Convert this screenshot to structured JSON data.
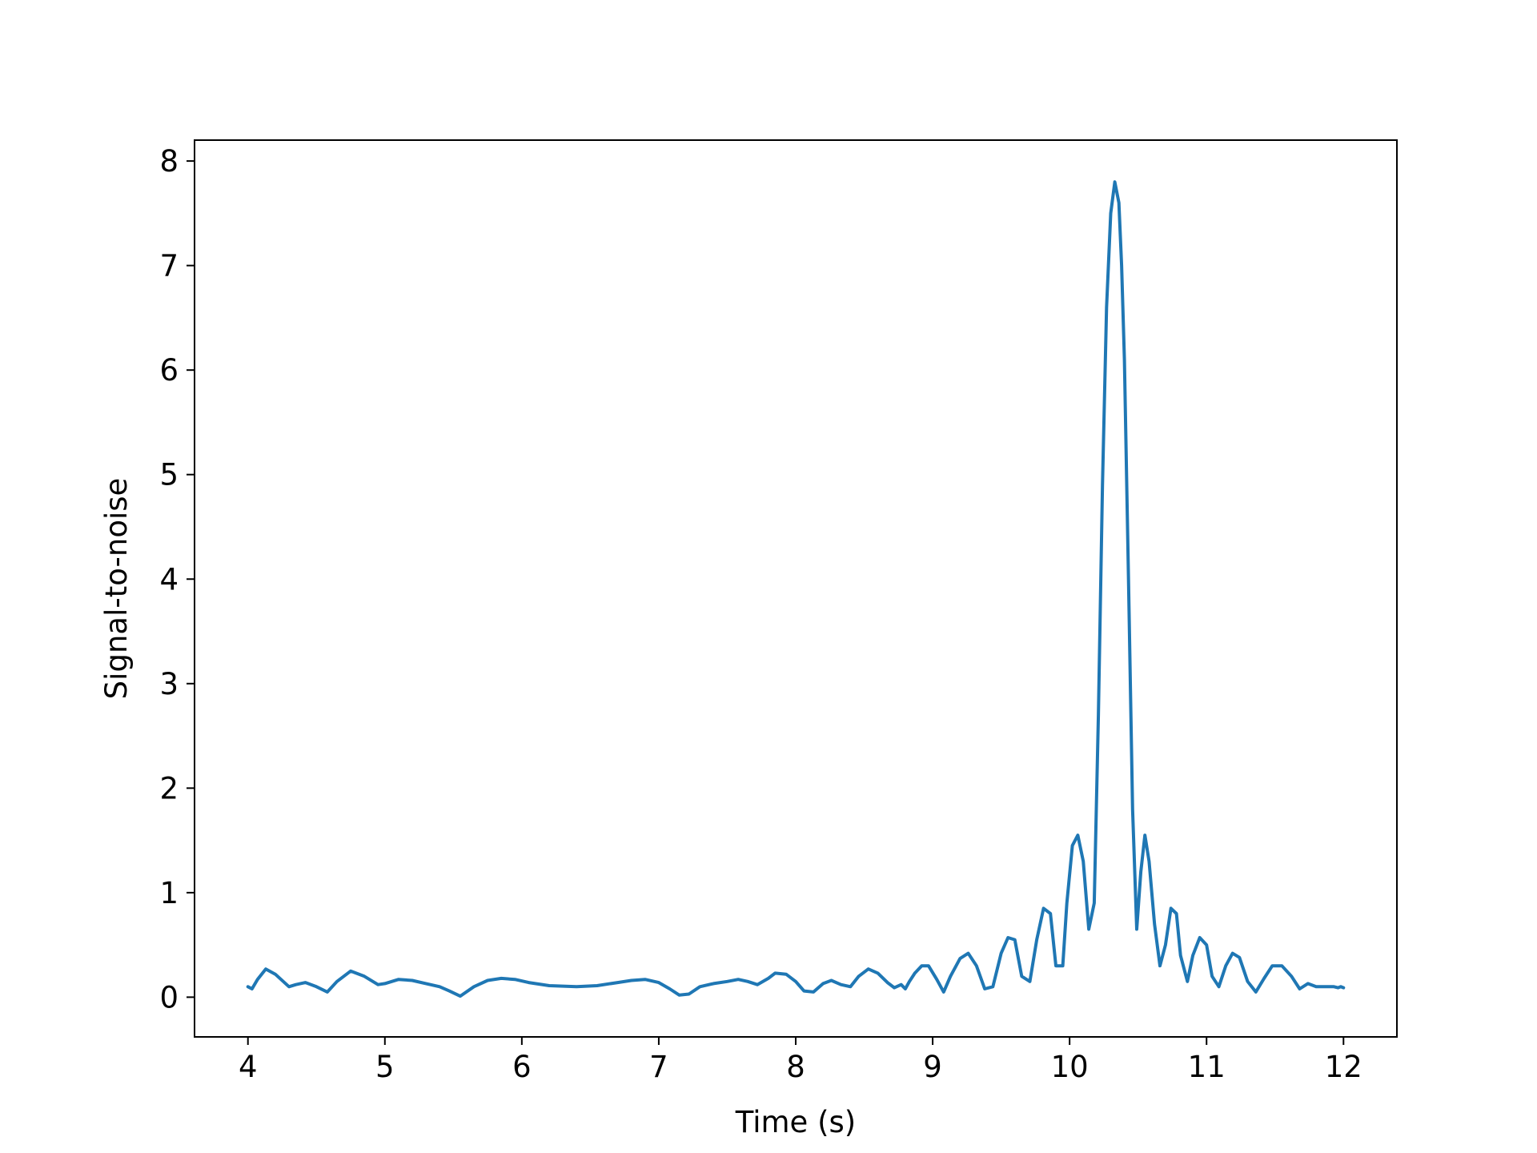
{
  "chart_data": {
    "type": "line",
    "title": "",
    "xlabel": "Time (s)",
    "ylabel": "Signal-to-noise",
    "xlim": [
      3.61,
      12.39
    ],
    "ylim": [
      -0.38,
      8.2
    ],
    "xticks": [
      4,
      5,
      6,
      7,
      8,
      9,
      10,
      11,
      12
    ],
    "xtick_labels": [
      "4",
      "5",
      "6",
      "7",
      "8",
      "9",
      "10",
      "11",
      "12"
    ],
    "yticks": [
      0,
      1,
      2,
      3,
      4,
      5,
      6,
      7,
      8
    ],
    "ytick_labels": [
      "0",
      "1",
      "2",
      "3",
      "4",
      "5",
      "6",
      "7",
      "8"
    ],
    "grid": false,
    "legend": "none",
    "series": [
      {
        "color": "#1f77b4",
        "x": [
          4.0,
          4.03,
          4.07,
          4.13,
          4.2,
          4.3,
          4.35,
          4.42,
          4.5,
          4.58,
          4.65,
          4.75,
          4.85,
          4.95,
          5.0,
          5.1,
          5.2,
          5.3,
          5.4,
          5.47,
          5.55,
          5.65,
          5.75,
          5.85,
          5.95,
          6.05,
          6.2,
          6.4,
          6.55,
          6.7,
          6.8,
          6.9,
          7.0,
          7.08,
          7.15,
          7.22,
          7.3,
          7.4,
          7.5,
          7.58,
          7.65,
          7.72,
          7.8,
          7.85,
          7.93,
          8.0,
          8.06,
          8.13,
          8.2,
          8.26,
          8.33,
          8.4,
          8.46,
          8.53,
          8.6,
          8.67,
          8.72,
          8.77,
          8.8,
          8.83,
          8.87,
          8.92,
          8.97,
          9.03,
          9.08,
          9.13,
          9.2,
          9.26,
          9.32,
          9.38,
          9.44,
          9.5,
          9.55,
          9.6,
          9.65,
          9.71,
          9.76,
          9.81,
          9.86,
          9.9,
          9.95,
          9.98,
          10.02,
          10.06,
          10.1,
          10.14,
          10.18,
          10.21,
          10.24,
          10.27,
          10.3,
          10.33,
          10.36,
          10.38,
          10.4,
          10.43,
          10.46,
          10.49,
          10.52,
          10.55,
          10.58,
          10.62,
          10.66,
          10.7,
          10.74,
          10.78,
          10.81,
          10.86,
          10.9,
          10.95,
          11.0,
          11.04,
          11.09,
          11.14,
          11.19,
          11.24,
          11.3,
          11.36,
          11.42,
          11.48,
          11.55,
          11.62,
          11.68,
          11.74,
          11.8,
          11.87,
          11.93,
          11.96,
          11.98,
          12.0
        ],
        "y": [
          0.1,
          0.08,
          0.17,
          0.27,
          0.22,
          0.1,
          0.12,
          0.14,
          0.1,
          0.05,
          0.15,
          0.25,
          0.2,
          0.12,
          0.13,
          0.17,
          0.16,
          0.13,
          0.1,
          0.06,
          0.01,
          0.1,
          0.16,
          0.18,
          0.17,
          0.14,
          0.11,
          0.1,
          0.11,
          0.14,
          0.16,
          0.17,
          0.14,
          0.08,
          0.02,
          0.03,
          0.1,
          0.13,
          0.15,
          0.17,
          0.15,
          0.12,
          0.18,
          0.23,
          0.22,
          0.15,
          0.06,
          0.05,
          0.13,
          0.16,
          0.12,
          0.1,
          0.2,
          0.27,
          0.23,
          0.14,
          0.09,
          0.12,
          0.08,
          0.15,
          0.23,
          0.3,
          0.3,
          0.17,
          0.05,
          0.2,
          0.37,
          0.42,
          0.3,
          0.08,
          0.1,
          0.42,
          0.57,
          0.55,
          0.2,
          0.15,
          0.55,
          0.85,
          0.8,
          0.3,
          0.3,
          0.9,
          1.45,
          1.55,
          1.3,
          0.65,
          0.9,
          2.7,
          4.9,
          6.6,
          7.5,
          7.8,
          7.6,
          7.0,
          6.1,
          4.0,
          1.8,
          0.65,
          1.2,
          1.55,
          1.3,
          0.7,
          0.3,
          0.5,
          0.85,
          0.8,
          0.4,
          0.15,
          0.4,
          0.57,
          0.5,
          0.2,
          0.1,
          0.3,
          0.42,
          0.38,
          0.15,
          0.05,
          0.18,
          0.3,
          0.3,
          0.2,
          0.08,
          0.13,
          0.1,
          0.1,
          0.1,
          0.09,
          0.1,
          0.09
        ]
      }
    ]
  }
}
